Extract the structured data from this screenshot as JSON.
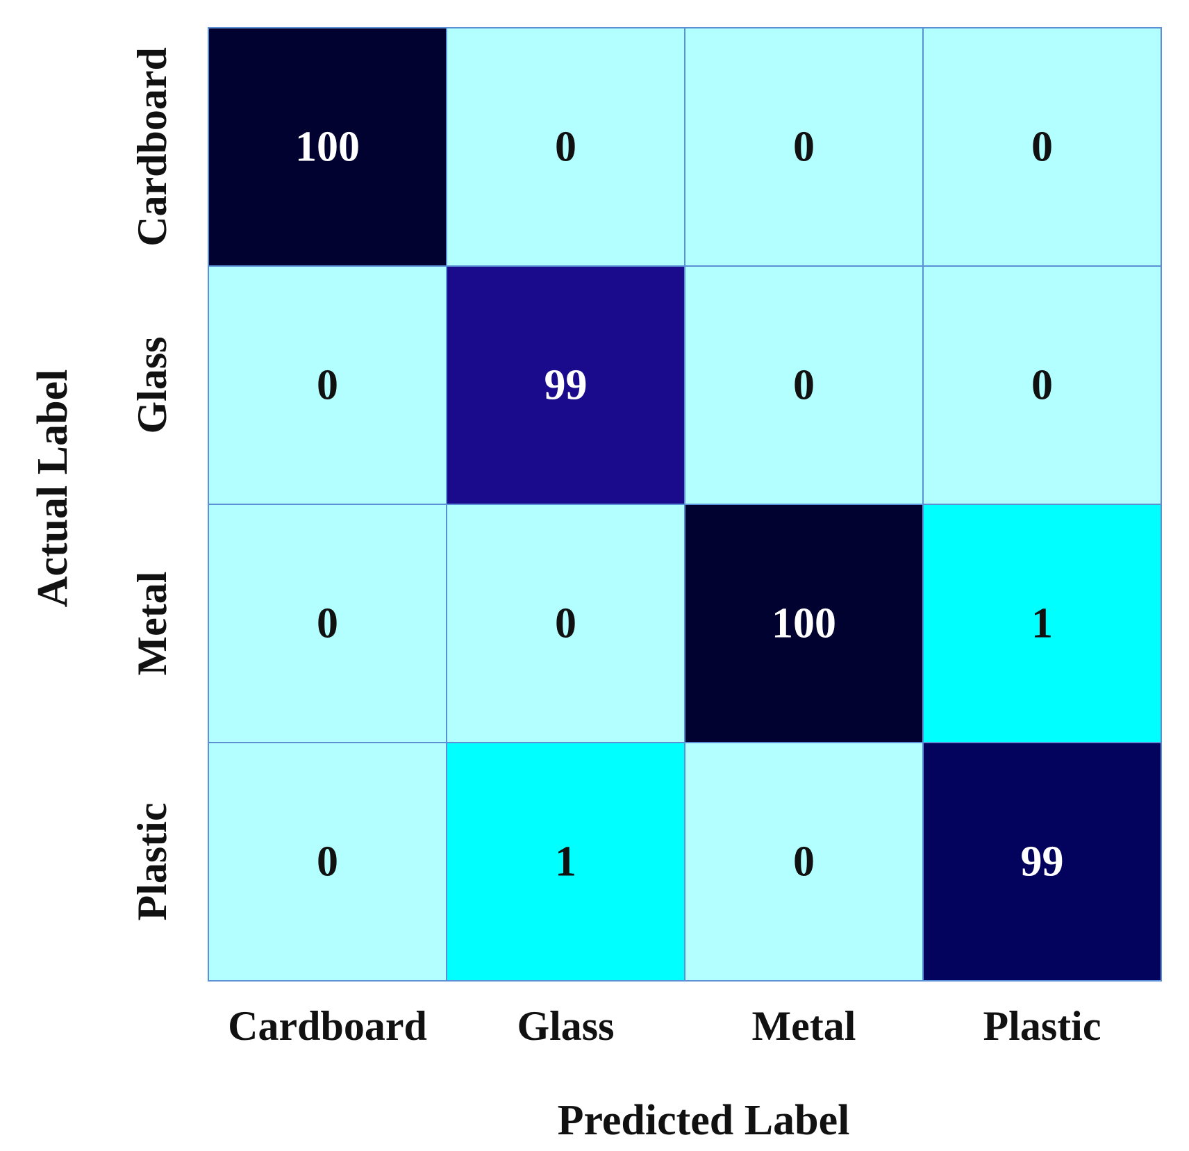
{
  "chart_data": {
    "type": "heatmap",
    "xlabel": "Predicted Label",
    "ylabel": "Actual Label",
    "x_categories": [
      "Cardboard",
      "Glass",
      "Metal",
      "Plastic"
    ],
    "y_categories": [
      "Cardboard",
      "Glass",
      "Metal",
      "Plastic"
    ],
    "values": [
      [
        100,
        0,
        0,
        0
      ],
      [
        0,
        99,
        0,
        0
      ],
      [
        0,
        0,
        100,
        1
      ],
      [
        0,
        1,
        0,
        99
      ]
    ],
    "colors": {
      "zero": "#b3ffff",
      "low": "#00ffff",
      "grid_line": "#5b8fd6",
      "text_dark": "#111111",
      "text_light": "#ffffff",
      "high_scale": [
        "#1a0a8c",
        "#03035e",
        "#020230"
      ]
    }
  }
}
